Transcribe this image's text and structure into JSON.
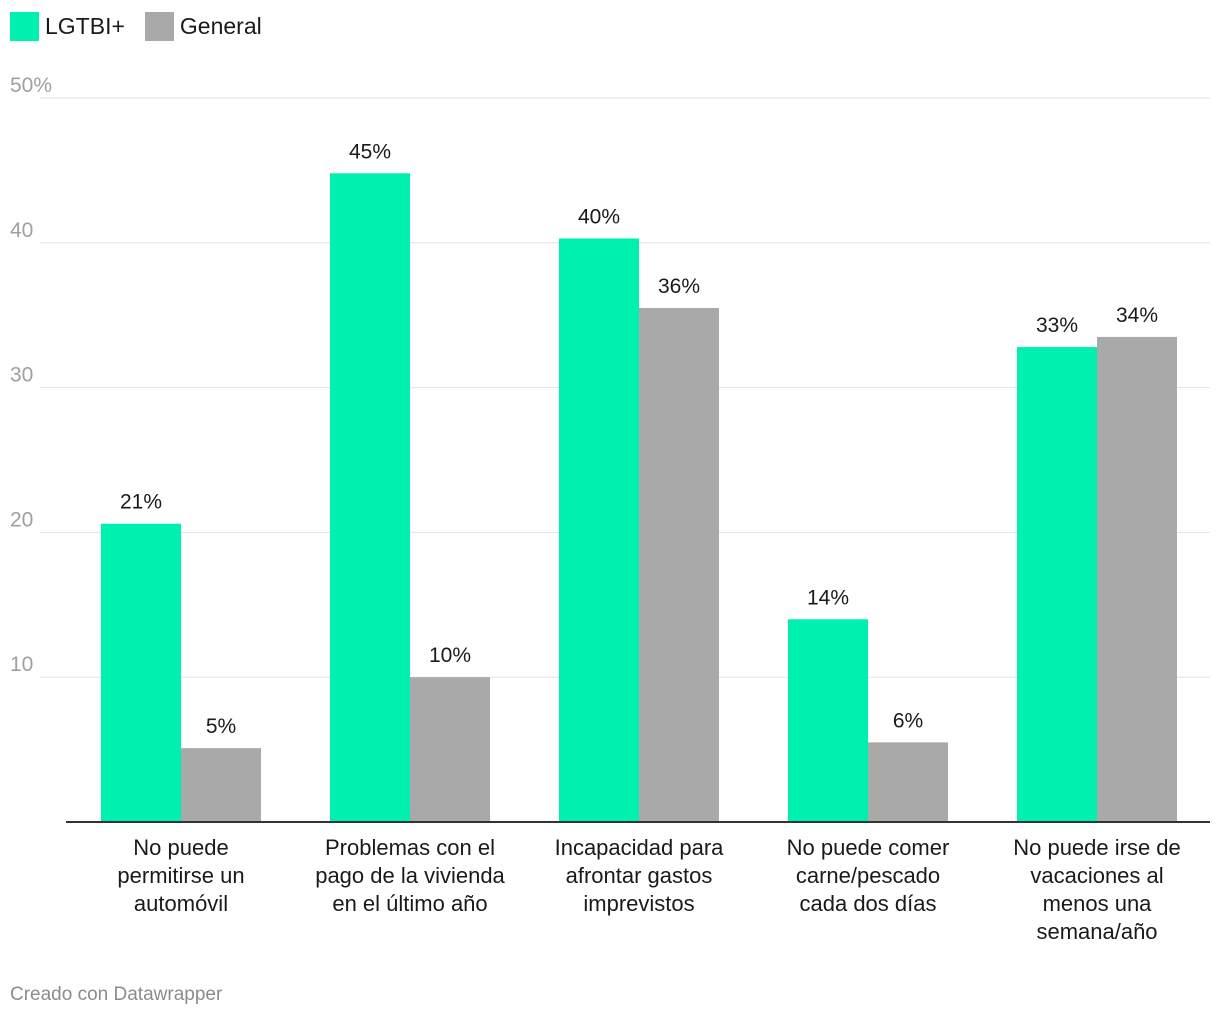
{
  "legend": {
    "lgtbi_label": "LGTBI+",
    "general_label": "General"
  },
  "colors": {
    "lgtbi": "#00f0b0",
    "general": "#a9a9a9",
    "grid": "#e2e2e2",
    "axis": "#333333",
    "tick_text": "#a0a0a0",
    "text": "#1a1a1a"
  },
  "footer": {
    "credit": "Creado con Datawrapper"
  },
  "chart_data": {
    "type": "bar",
    "title": "",
    "xlabel": "",
    "ylabel": "",
    "ylim": [
      0,
      50
    ],
    "yticks": [
      {
        "value": 10,
        "label": "10"
      },
      {
        "value": 20,
        "label": "20"
      },
      {
        "value": 30,
        "label": "30"
      },
      {
        "value": 40,
        "label": "40"
      },
      {
        "value": 50,
        "label": "50%"
      }
    ],
    "categories": [
      [
        "No puede",
        "permitirse un",
        "automóvil"
      ],
      [
        "Problemas con el",
        "pago de la vivienda",
        "en el último año"
      ],
      [
        "Incapacidad para",
        "afrontar gastos",
        "imprevistos"
      ],
      [
        "No puede comer",
        "carne/pescado",
        "cada dos días"
      ],
      [
        "No puede irse de",
        "vacaciones al",
        "menos una",
        "semana/año"
      ]
    ],
    "series": [
      {
        "name": "LGTBI+",
        "color": "#00f0b0",
        "values": [
          20.6,
          44.8,
          40.3,
          14.0,
          32.8
        ],
        "labels": [
          "21%",
          "45%",
          "40%",
          "14%",
          "33%"
        ]
      },
      {
        "name": "General",
        "color": "#a9a9a9",
        "values": [
          5.1,
          10.0,
          35.5,
          5.5,
          33.5
        ],
        "labels": [
          "5%",
          "10%",
          "36%",
          "6%",
          "34%"
        ]
      }
    ]
  }
}
